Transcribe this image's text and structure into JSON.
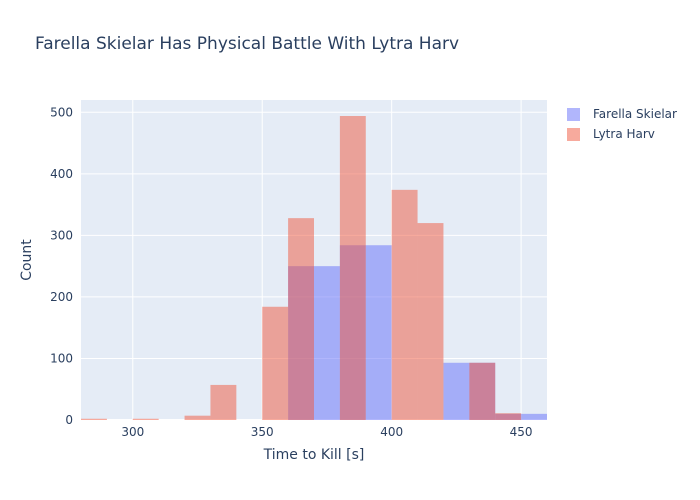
{
  "chart_data": {
    "type": "bar",
    "mode": "overlay-histogram",
    "title": "Farella Skielar Has Physical Battle With Lytra Harv",
    "xlabel": "Time to Kill [s]",
    "ylabel": "Count",
    "xlim": [
      280,
      460
    ],
    "ylim": [
      0,
      520
    ],
    "x_ticks": [
      300,
      350,
      400,
      450
    ],
    "y_ticks": [
      0,
      100,
      200,
      300,
      400,
      500
    ],
    "grid": true,
    "legend_position": "top-right",
    "bin_width": 10,
    "series": [
      {
        "name": "Farella Skielar",
        "color": "#636efa",
        "bins": [
          {
            "x0": 360,
            "x1": 370,
            "count": 250
          },
          {
            "x0": 370,
            "x1": 380,
            "count": 250
          },
          {
            "x0": 380,
            "x1": 390,
            "count": 284
          },
          {
            "x0": 390,
            "x1": 400,
            "count": 284
          },
          {
            "x0": 420,
            "x1": 430,
            "count": 93
          },
          {
            "x0": 430,
            "x1": 440,
            "count": 93
          },
          {
            "x0": 440,
            "x1": 450,
            "count": 10
          },
          {
            "x0": 450,
            "x1": 460,
            "count": 10
          }
        ]
      },
      {
        "name": "Lytra Harv",
        "color": "#ef553b",
        "bins": [
          {
            "x0": 280,
            "x1": 290,
            "count": 2
          },
          {
            "x0": 300,
            "x1": 310,
            "count": 2
          },
          {
            "x0": 320,
            "x1": 330,
            "count": 7
          },
          {
            "x0": 330,
            "x1": 340,
            "count": 57
          },
          {
            "x0": 350,
            "x1": 360,
            "count": 184
          },
          {
            "x0": 360,
            "x1": 370,
            "count": 328
          },
          {
            "x0": 380,
            "x1": 390,
            "count": 494
          },
          {
            "x0": 400,
            "x1": 410,
            "count": 374
          },
          {
            "x0": 410,
            "x1": 420,
            "count": 320
          },
          {
            "x0": 430,
            "x1": 440,
            "count": 93
          },
          {
            "x0": 440,
            "x1": 450,
            "count": 11
          }
        ]
      }
    ]
  }
}
